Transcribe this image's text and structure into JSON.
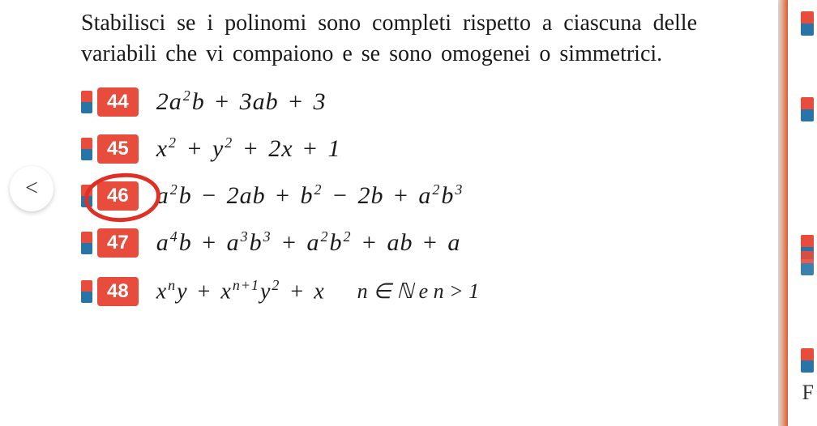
{
  "instruction": "Stabilisci se i polinomi sono completi rispetto a ciascuna delle variabili che vi compaiono e se sono omogenei o simmetrici.",
  "nav": {
    "prev_glyph": "<"
  },
  "exercises": {
    "e44": {
      "number": "44",
      "formula_html": "2<i>a</i><sup>2</sup><i>b</i> <span class='op'>+</span> 3<i>ab</i> <span class='op'>+</span> 3"
    },
    "e45": {
      "number": "45",
      "formula_html": "<i>x</i><sup>2</sup> <span class='op'>+</span> <i>y</i><sup>2</sup> <span class='op'>+</span> 2<i>x</i> <span class='op'>+</span> 1"
    },
    "e46": {
      "number": "46",
      "formula_html": "<i>a</i><sup>2</sup><i>b</i> <span class='op'>−</span> 2<i>ab</i> <span class='op'>+</span> <i>b</i><sup>2</sup> <span class='op'>−</span> 2<i>b</i> <span class='op'>+</span> <i>a</i><sup>2</sup><i>b</i><sup>3</sup>"
    },
    "e47": {
      "number": "47",
      "formula_html": "<i>a</i><sup>4</sup><i>b</i> <span class='op'>+</span> <i>a</i><sup>3</sup><i>b</i><sup>3</sup> <span class='op'>+</span> <i>a</i><sup>2</sup><i>b</i><sup>2</sup> <span class='op'>+</span> <i>ab</i> <span class='op'>+</span> <i>a</i>"
    },
    "e48": {
      "number": "48",
      "formula_html": "<i>x</i><sup><i>n</i></sup><i>y</i> <span class='op'>+</span> <i>x</i><sup><i>n</i>+1</sup><i>y</i><sup>2</sup> <span class='op'>+</span> <i>x</i>",
      "note_html": "<i>n</i> ∈ ℕ e <i>n</i> > 1"
    }
  },
  "colors": {
    "badge_bg": "#e74c3c",
    "badge_fg": "#ffffff",
    "flag_top": "#e74c3c",
    "flag_bottom": "#2874a6",
    "circle_stroke": "#e03026",
    "page_bg": "#ffffff",
    "text": "#1a1a1a",
    "orange_edge": "#e8622c"
  },
  "typography": {
    "instruction_fontsize": 28,
    "formula_fontsize": 30,
    "badge_fontsize": 24
  },
  "right_letter": "F"
}
